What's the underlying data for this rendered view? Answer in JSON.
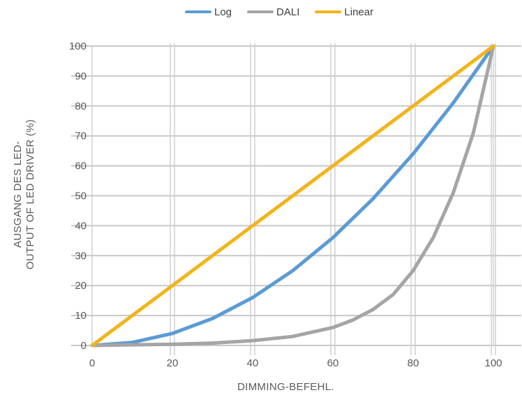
{
  "chart_data": {
    "type": "line",
    "title": "",
    "xlabel": "DIMMING-BEFEHL.",
    "ylabel_lines": [
      "AUSGANG DES LED-",
      "OUTPUT OF LED DRIVER (%)"
    ],
    "xlim": [
      0,
      100
    ],
    "ylim": [
      0,
      100
    ],
    "xticks": [
      0,
      20,
      40,
      60,
      80,
      100
    ],
    "yticks": [
      0,
      10,
      20,
      30,
      40,
      50,
      60,
      70,
      80,
      90,
      100
    ],
    "grid": true,
    "legend_position": "top",
    "series": [
      {
        "name": "Log",
        "color": "#5B9BD5",
        "x": [
          0,
          10,
          20,
          30,
          40,
          50,
          60,
          70,
          80,
          90,
          100
        ],
        "y": [
          0,
          1,
          4,
          9,
          16,
          25,
          36,
          49,
          64,
          81,
          100
        ]
      },
      {
        "name": "DALI",
        "color": "#A5A5A5",
        "x": [
          0,
          10,
          20,
          30,
          40,
          50,
          60,
          65,
          70,
          75,
          80,
          85,
          90,
          95,
          100
        ],
        "y": [
          0,
          0.2,
          0.4,
          0.8,
          1.6,
          3,
          6,
          8.5,
          12,
          17,
          25,
          36,
          51,
          71,
          100
        ]
      },
      {
        "name": "Linear",
        "color": "#F2B41C",
        "x": [
          0,
          100
        ],
        "y": [
          0,
          100
        ]
      }
    ]
  }
}
